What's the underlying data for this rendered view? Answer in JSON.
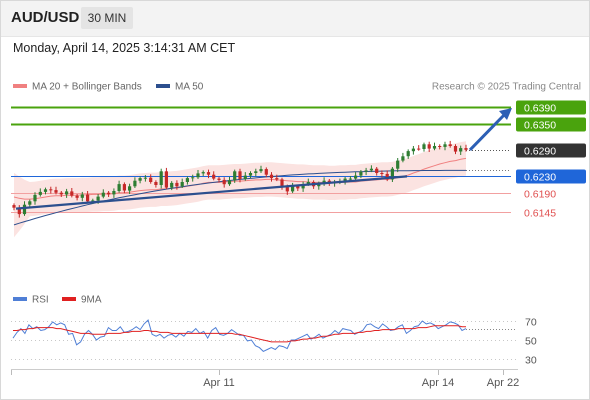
{
  "header": {
    "symbol": "AUD/USD",
    "timeframe": "30 MIN",
    "datetime": "Monday, April 14, 2025 3:14:31 AM CET"
  },
  "legend": {
    "ma20": "MA 20 + Bollinger Bands",
    "ma50": "MA 50",
    "credit": "Research © 2025 Trading Central",
    "colors": {
      "ma20": "#f08080",
      "ma50": "#2c4f8e"
    }
  },
  "levels": [
    {
      "value": 0.639,
      "label": "0.6390",
      "kind": "resistance",
      "color": "#4aa30d"
    },
    {
      "value": 0.635,
      "label": "0.6350",
      "kind": "resistance",
      "color": "#4aa30d"
    },
    {
      "value": 0.629,
      "label": "0.6290",
      "kind": "current",
      "color": "#333333"
    },
    {
      "value": 0.623,
      "label": "0.6230",
      "kind": "pivot",
      "color": "#1f66d9"
    },
    {
      "value": 0.619,
      "label": "0.6190",
      "kind": "support",
      "color": "#e05050"
    },
    {
      "value": 0.6145,
      "label": "0.6145",
      "kind": "support",
      "color": "#e05050"
    }
  ],
  "rsi_panel": {
    "rsi_label": "RSI",
    "ma_label": "9MA",
    "rsi_color": "#4f7fd6",
    "ma_color": "#e02020",
    "ticks": [
      "70",
      "50",
      "30"
    ]
  },
  "x_axis": {
    "labels": [
      "Apr 11",
      "Apr 14",
      "Apr 22"
    ]
  },
  "chart_data": {
    "type": "candlestick",
    "instrument": "AUD/USD",
    "timeframe": "30 MIN",
    "price_levels": [
      0.639,
      0.635,
      0.629,
      0.623,
      0.619,
      0.6145
    ],
    "current_price": 0.629,
    "pivot": 0.623,
    "closes": [
      0.6155,
      0.614,
      0.6162,
      0.617,
      0.6185,
      0.6192,
      0.6198,
      0.6196,
      0.619,
      0.6186,
      0.6193,
      0.6183,
      0.6178,
      0.6186,
      0.617,
      0.6172,
      0.6181,
      0.619,
      0.6186,
      0.6194,
      0.621,
      0.6195,
      0.6205,
      0.6218,
      0.6224,
      0.6225,
      0.6215,
      0.6208,
      0.624,
      0.6202,
      0.6213,
      0.6205,
      0.6215,
      0.6224,
      0.6226,
      0.6235,
      0.6238,
      0.6232,
      0.6223,
      0.622,
      0.621,
      0.6219,
      0.624,
      0.6222,
      0.623,
      0.6236,
      0.624,
      0.6245,
      0.6232,
      0.6224,
      0.6221,
      0.6203,
      0.6193,
      0.6205,
      0.62,
      0.621,
      0.6215,
      0.6205,
      0.621,
      0.6218,
      0.6212,
      0.6214,
      0.6215,
      0.6223,
      0.6223,
      0.623,
      0.6239,
      0.6242,
      0.6246,
      0.6236,
      0.6234,
      0.6221,
      0.6246,
      0.6265,
      0.6275,
      0.6287,
      0.6293,
      0.6292,
      0.6303,
      0.6293,
      0.6299,
      0.6297,
      0.6303,
      0.6299,
      0.6286,
      0.6294,
      0.629
    ],
    "ma20": [
      0.618,
      0.6177,
      0.6175,
      0.6175,
      0.6176,
      0.6178,
      0.618,
      0.6182,
      0.6183,
      0.6183,
      0.6184,
      0.6184,
      0.6184,
      0.6185,
      0.6185,
      0.6186,
      0.6186,
      0.6187,
      0.6187,
      0.6188,
      0.619,
      0.619,
      0.6191,
      0.6193,
      0.6195,
      0.6196,
      0.6197,
      0.6197,
      0.6199,
      0.6199,
      0.62,
      0.6201,
      0.6203,
      0.6205,
      0.6207,
      0.6209,
      0.6212,
      0.6214,
      0.6214,
      0.6214,
      0.6215,
      0.6216,
      0.6217,
      0.6217,
      0.6218,
      0.6219,
      0.622,
      0.622,
      0.6221,
      0.6221,
      0.622,
      0.6219,
      0.6218,
      0.6217,
      0.6216,
      0.6216,
      0.6215,
      0.6214,
      0.6214,
      0.6214,
      0.6213,
      0.6213,
      0.6214,
      0.6214,
      0.6215,
      0.6215,
      0.6217,
      0.6218,
      0.6219,
      0.622,
      0.6221,
      0.6221,
      0.6222,
      0.6225,
      0.6228,
      0.6231,
      0.6236,
      0.624,
      0.6245,
      0.6249,
      0.6253,
      0.6257,
      0.626,
      0.6263,
      0.6265,
      0.6268,
      0.627
    ],
    "bollinger_width": 0.004,
    "ma50_start": 0.6115,
    "ma50_end": 0.6242,
    "ma50_curve": 2.6,
    "trendline": {
      "from": 0.6153,
      "to": 0.6228
    },
    "projection": {
      "from": 0.629,
      "to": 0.639
    },
    "rsi": [
      52,
      58,
      62,
      57,
      66,
      62,
      64,
      60,
      61,
      64,
      69,
      66,
      68,
      66,
      56,
      57,
      45,
      48,
      56,
      60,
      56,
      50,
      53,
      54,
      63,
      60,
      60,
      64,
      58,
      59,
      61,
      64,
      61,
      67,
      71,
      56,
      54,
      56,
      52,
      55,
      56,
      53,
      57,
      54,
      59,
      58,
      62,
      57,
      59,
      52,
      60,
      63,
      56,
      55,
      57,
      61,
      58,
      55,
      55,
      49,
      50,
      44,
      42,
      38,
      40,
      42,
      40,
      44,
      43,
      41,
      50,
      50,
      52,
      54,
      56,
      51,
      53,
      56,
      52,
      54,
      56,
      60,
      57,
      62,
      61,
      60,
      56,
      58,
      60,
      66,
      67,
      64,
      62,
      67,
      64,
      60,
      61,
      64,
      66,
      57,
      60,
      64,
      65,
      70,
      67,
      68,
      66,
      62,
      64,
      66,
      69,
      68,
      66,
      60,
      62
    ],
    "rsi_ma": [
      60,
      60,
      61,
      61,
      62,
      62,
      63,
      63,
      63,
      63,
      63,
      62,
      62,
      61,
      60,
      59,
      58,
      57,
      57,
      57,
      56,
      56,
      56,
      56,
      57,
      57,
      57,
      57,
      58,
      58,
      59,
      59,
      59,
      60,
      60,
      59,
      59,
      58,
      58,
      58,
      57,
      57,
      57,
      57,
      57,
      57,
      57,
      57,
      57,
      57,
      57,
      57,
      57,
      57,
      57,
      57,
      56,
      56,
      55,
      54,
      53,
      52,
      51,
      50,
      49,
      48,
      48,
      48,
      48,
      48,
      49,
      49,
      50,
      51,
      51,
      52,
      52,
      53,
      54,
      54,
      55,
      56,
      56,
      57,
      57,
      57,
      57,
      58,
      58,
      59,
      59,
      60,
      60,
      61,
      61,
      61,
      61,
      62,
      62,
      62,
      62,
      62,
      63,
      63,
      63,
      64,
      65,
      65,
      65,
      65,
      65,
      65,
      65,
      64,
      64
    ],
    "rsi_ticks": [
      70,
      50,
      30
    ],
    "x_labels": [
      "Apr 11",
      "Apr 14",
      "Apr 22"
    ]
  }
}
